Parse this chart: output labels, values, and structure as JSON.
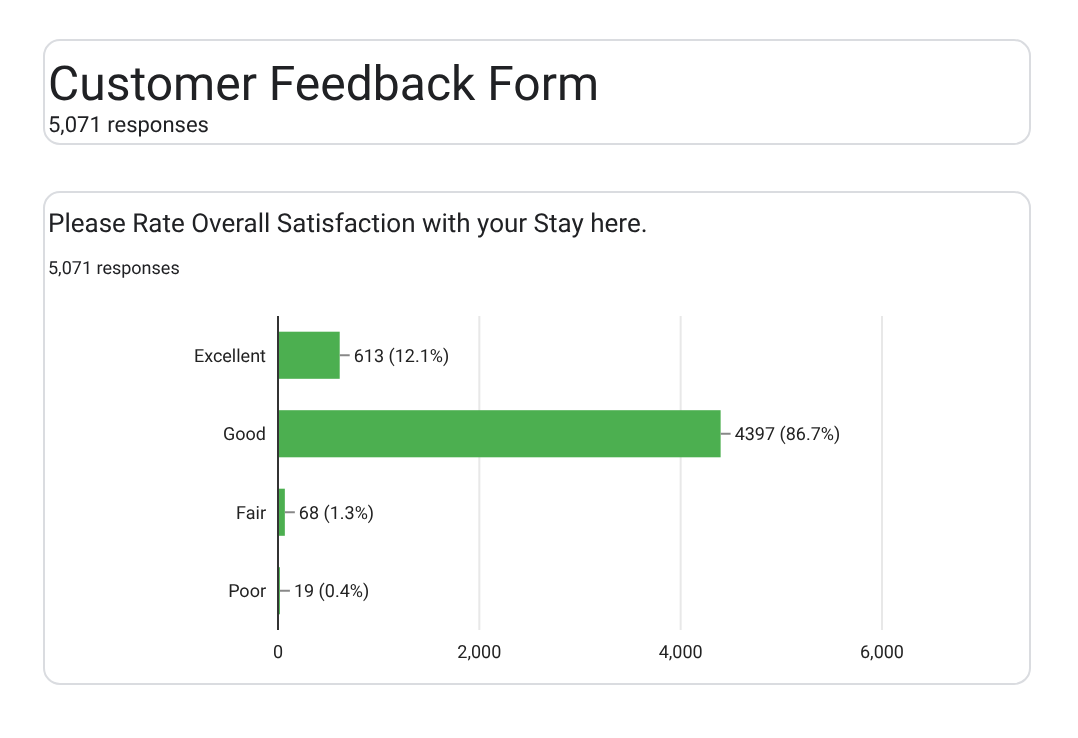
{
  "chart_data": {
    "type": "bar",
    "orientation": "horizontal",
    "title": "Please Rate Overall Satisfaction with your Stay here.",
    "subtitle": "5,071 responses",
    "annotations": [
      "Customer Feedback Form",
      "5,071 responses"
    ],
    "categories": [
      "Excellent",
      "Good",
      "Fair",
      "Poor"
    ],
    "values": [
      613,
      4397,
      68,
      19
    ],
    "value_labels": [
      "613 (12.1%)",
      "4397 (86.7%)",
      "68 (1.3%)",
      "19 (0.4%)"
    ],
    "color": "#4caf50",
    "xlim": [
      0,
      6000
    ],
    "xticks": [
      0,
      {
        "value": 2000,
        "label": "2,000"
      },
      {
        "value": 4000,
        "label": "4,000"
      },
      {
        "value": 6000,
        "label": "6,000"
      }
    ],
    "grid": "x"
  }
}
